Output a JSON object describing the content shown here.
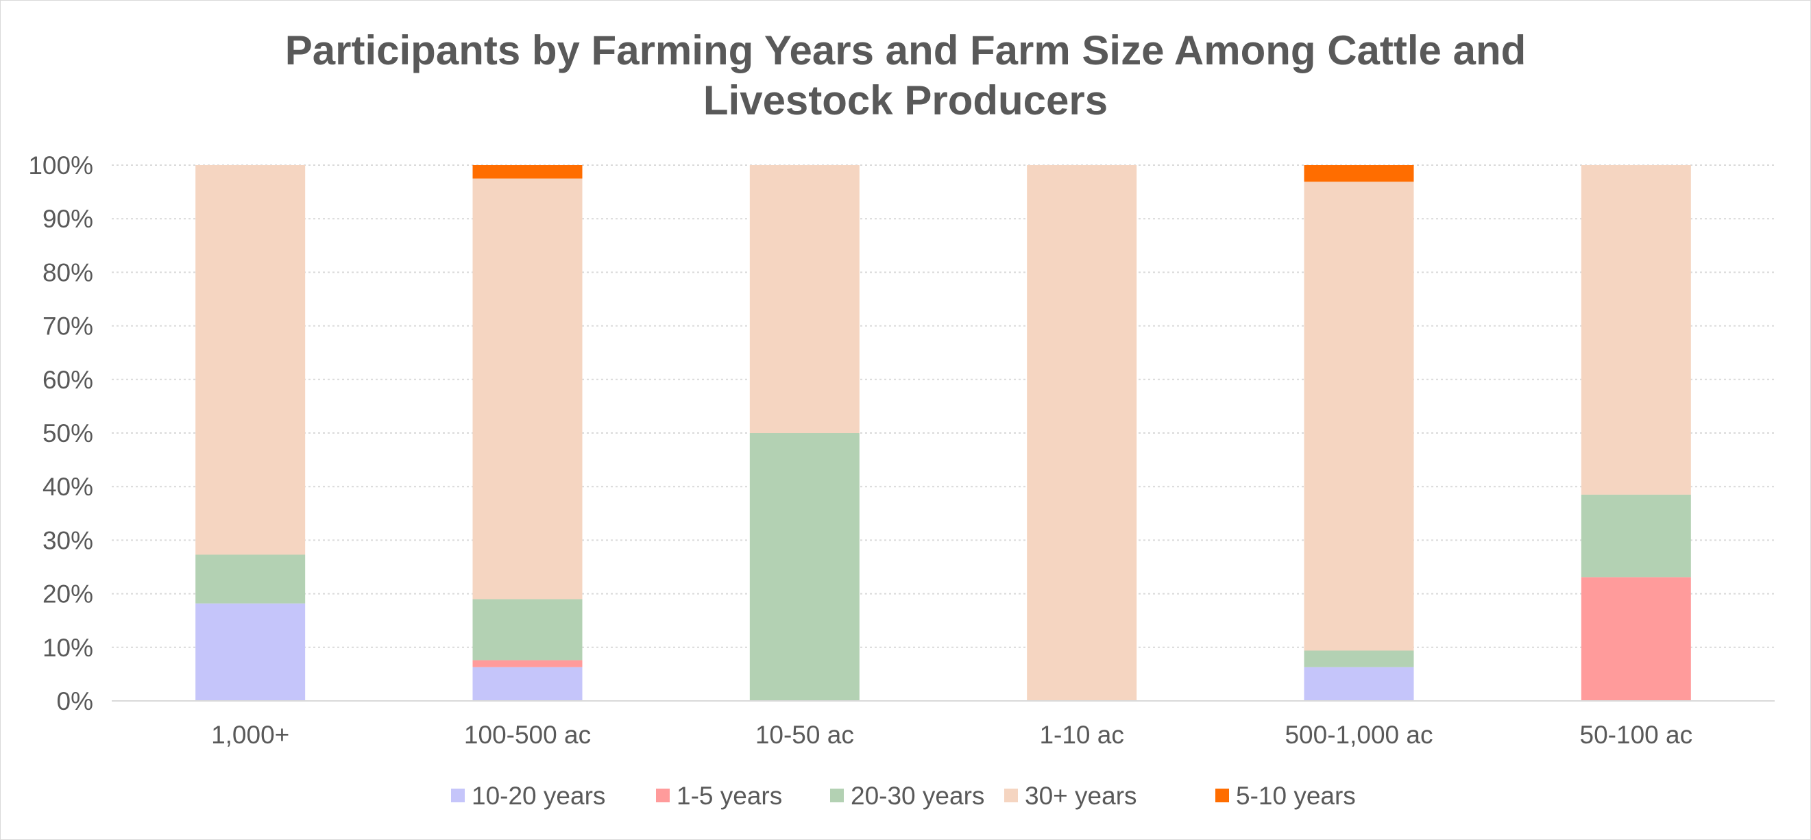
{
  "chart_data": {
    "type": "bar",
    "stacked": true,
    "percent_stacked": true,
    "title_lines": [
      "Participants by Farming Years and Farm Size Among Cattle and",
      "Livestock Producers"
    ],
    "categories": [
      "1,000+",
      "100-500 ac",
      "10-50 ac",
      "1-10 ac",
      "500-1,000 ac",
      "50-100 ac"
    ],
    "series": [
      {
        "name": "10-20 years",
        "color": "#c5c5fa",
        "values": [
          18.2,
          6.3,
          0,
          0,
          6.3,
          0
        ]
      },
      {
        "name": "1-5 years",
        "color": "#ff9b9b",
        "values": [
          0,
          1.3,
          0,
          0,
          0,
          23.1
        ]
      },
      {
        "name": "20-30 years",
        "color": "#b3d1b3",
        "values": [
          9.1,
          11.4,
          50.0,
          0,
          3.1,
          15.4
        ]
      },
      {
        "name": "30+ years",
        "color": "#f5d5c1",
        "values": [
          72.7,
          78.5,
          50.0,
          100,
          87.5,
          61.5
        ]
      },
      {
        "name": "5-10 years",
        "color": "#ff6d00",
        "values": [
          0,
          2.5,
          0,
          0,
          3.1,
          0
        ]
      }
    ],
    "y_ticks": [
      "0%",
      "10%",
      "20%",
      "30%",
      "40%",
      "50%",
      "60%",
      "70%",
      "80%",
      "90%",
      "100%"
    ],
    "ylim": [
      0,
      100
    ],
    "grid": true,
    "legend_position": "bottom"
  }
}
